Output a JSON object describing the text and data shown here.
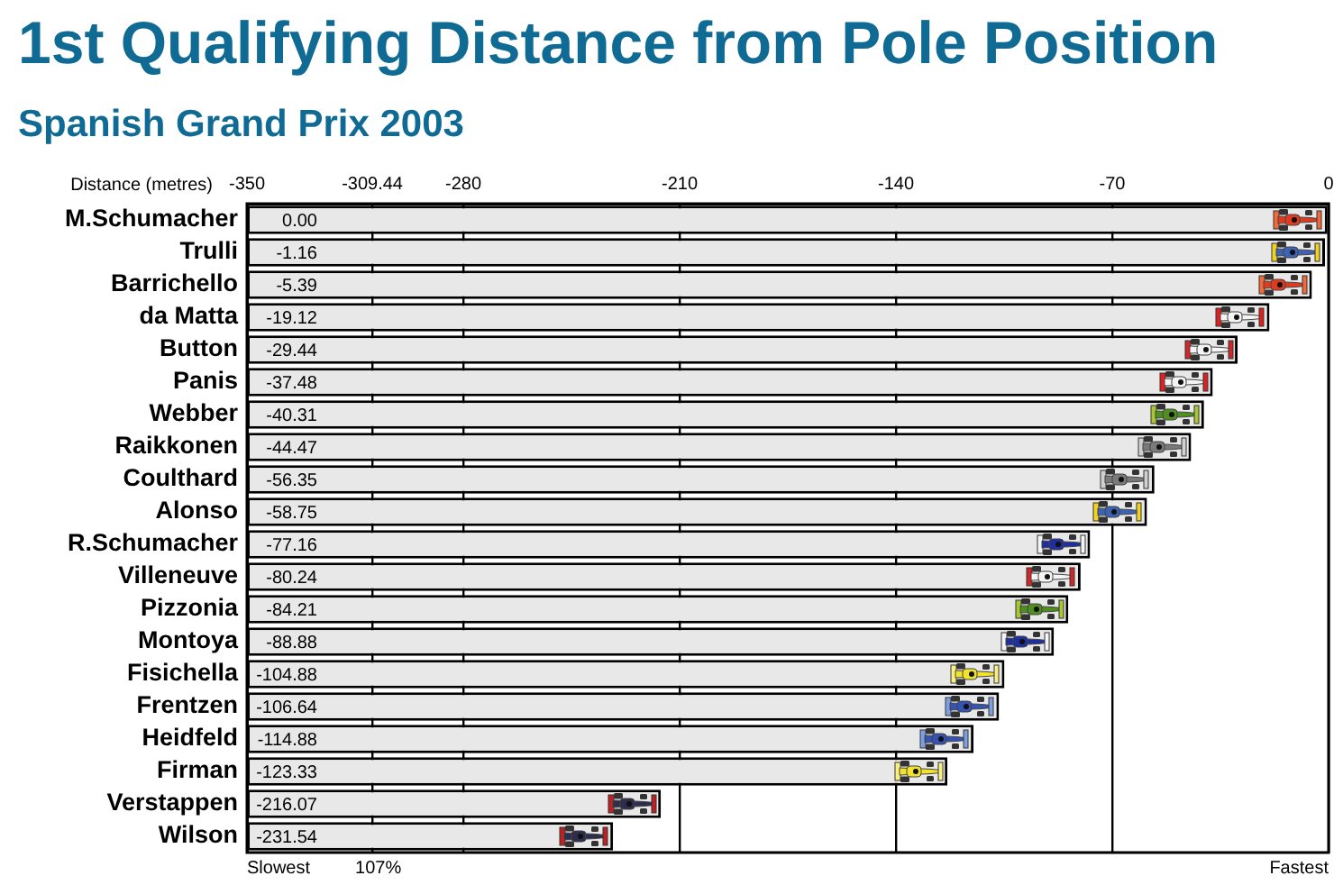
{
  "chart_data": {
    "type": "bar",
    "orientation": "horizontal",
    "title": "1st Qualifying Distance from Pole Position",
    "subtitle": "Spanish Grand Prix 2003",
    "xlabel": "Distance (metres)",
    "categories": [
      "M.Schumacher",
      "Trulli",
      "Barrichello",
      "da Matta",
      "Button",
      "Panis",
      "Webber",
      "Raikkonen",
      "Coulthard",
      "Alonso",
      "R.Schumacher",
      "Villeneuve",
      "Pizzonia",
      "Montoya",
      "Fisichella",
      "Frentzen",
      "Heidfeld",
      "Firman",
      "Verstappen",
      "Wilson"
    ],
    "base": [
      -350,
      -350,
      -350,
      -350,
      -350,
      -350,
      -350,
      -350,
      -350,
      -350,
      -350,
      -350,
      -350,
      -350,
      -350,
      -350,
      -350,
      -350,
      -350,
      -350
    ],
    "values": [
      350,
      348.84,
      344.61,
      330.88,
      320.56,
      312.52,
      309.69,
      305.53,
      293.65,
      291.25,
      272.84,
      269.76,
      265.79,
      261.12,
      245.12,
      243.36,
      235.12,
      226.67,
      133.93,
      118.46
    ],
    "value_labels": [
      "0.00",
      "-1.16",
      "-5.39",
      "-19.12",
      "-29.44",
      "-37.48",
      "-40.31",
      "-44.47",
      "-56.35",
      "-58.75",
      "-77.16",
      "-80.24",
      "-84.21",
      "-88.88",
      "-104.88",
      "-106.64",
      "-114.88",
      "-123.33",
      "-216.07",
      "-231.54"
    ],
    "color": "#e8e8e8",
    "xlim": [
      -350,
      0
    ],
    "xticks": [
      -350,
      -309.44,
      -280,
      -210,
      -140,
      -70,
      0
    ],
    "grid": "x",
    "annotations": [
      "Slowest",
      "107%",
      "Fastest"
    ]
  }
}
